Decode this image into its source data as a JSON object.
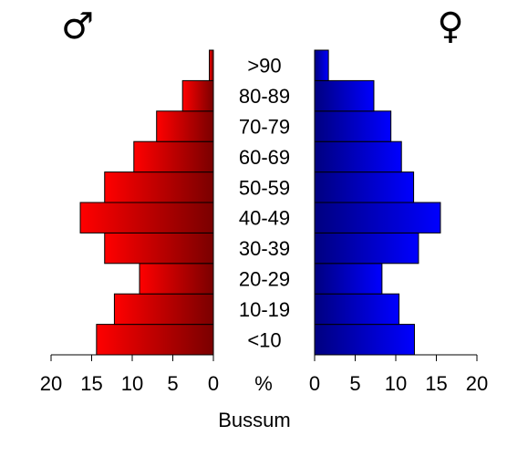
{
  "symbols": {
    "male": "♂",
    "female": "♀"
  },
  "colors": {
    "male_light": "#ff0000",
    "male_dark": "#7a0000",
    "female_light": "#0000ff",
    "female_dark": "#000080",
    "axis": "#000000"
  },
  "chart_data": {
    "type": "bar",
    "subtype": "population-pyramid",
    "title": "Bussum",
    "unit_label": "%",
    "categories": [
      "<10",
      "10-19",
      "20-29",
      "30-39",
      "40-49",
      "50-59",
      "60-69",
      "70-79",
      "80-89",
      ">90"
    ],
    "series": [
      {
        "name": "♂",
        "values": [
          14.4,
          12.2,
          9.1,
          13.4,
          16.4,
          13.4,
          9.8,
          7.0,
          3.8,
          0.5
        ]
      },
      {
        "name": "♀",
        "values": [
          12.3,
          10.4,
          8.3,
          12.8,
          15.5,
          12.2,
          10.7,
          9.4,
          7.3,
          1.7
        ]
      }
    ],
    "xlim": [
      0,
      20
    ],
    "xticks": [
      0,
      5,
      10,
      15,
      20
    ],
    "ytick_labels_centered": true,
    "grid": false,
    "legend": "none"
  }
}
